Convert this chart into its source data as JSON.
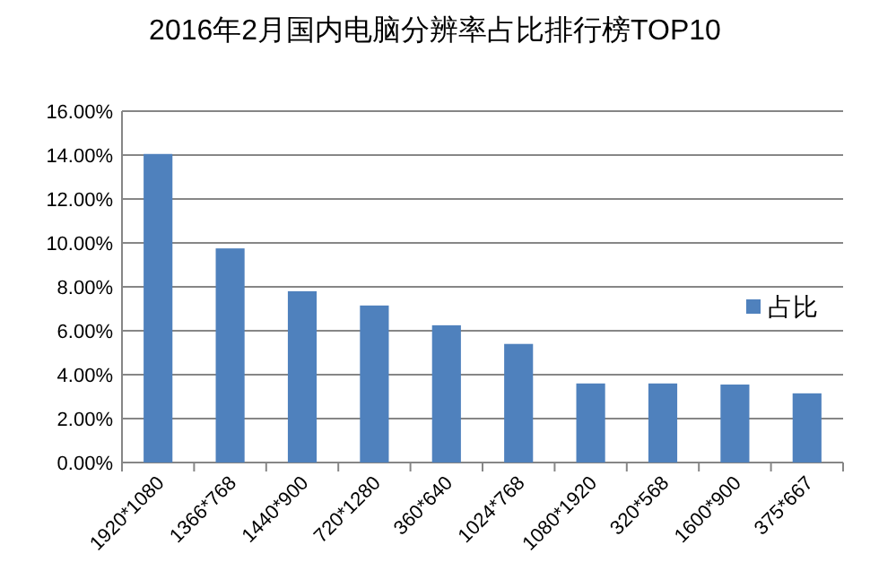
{
  "chart_data": {
    "type": "bar",
    "title": "2016年2月国内电脑分辨率占比排行榜TOP10",
    "categories": [
      "1920*1080",
      "1366*768",
      "1440*900",
      "720*1280",
      "360*640",
      "1024*768",
      "1080*1920",
      "320*568",
      "1600*900",
      "375*667"
    ],
    "series": [
      {
        "name": "占比",
        "color": "#4f81bd",
        "values": [
          14.05,
          9.75,
          7.8,
          7.15,
          6.25,
          5.4,
          3.6,
          3.6,
          3.55,
          3.15
        ]
      }
    ],
    "ylim": [
      0,
      16
    ],
    "yticks": [
      {
        "value": 0,
        "label": "0.00%"
      },
      {
        "value": 2,
        "label": "2.00%"
      },
      {
        "value": 4,
        "label": "4.00%"
      },
      {
        "value": 6,
        "label": "6.00%"
      },
      {
        "value": 8,
        "label": "8.00%"
      },
      {
        "value": 10,
        "label": "10.00%"
      },
      {
        "value": 12,
        "label": "12.00%"
      },
      {
        "value": 14,
        "label": "14.00%"
      },
      {
        "value": 16,
        "label": "16.00%"
      }
    ],
    "grid": "y",
    "legend": "right"
  }
}
